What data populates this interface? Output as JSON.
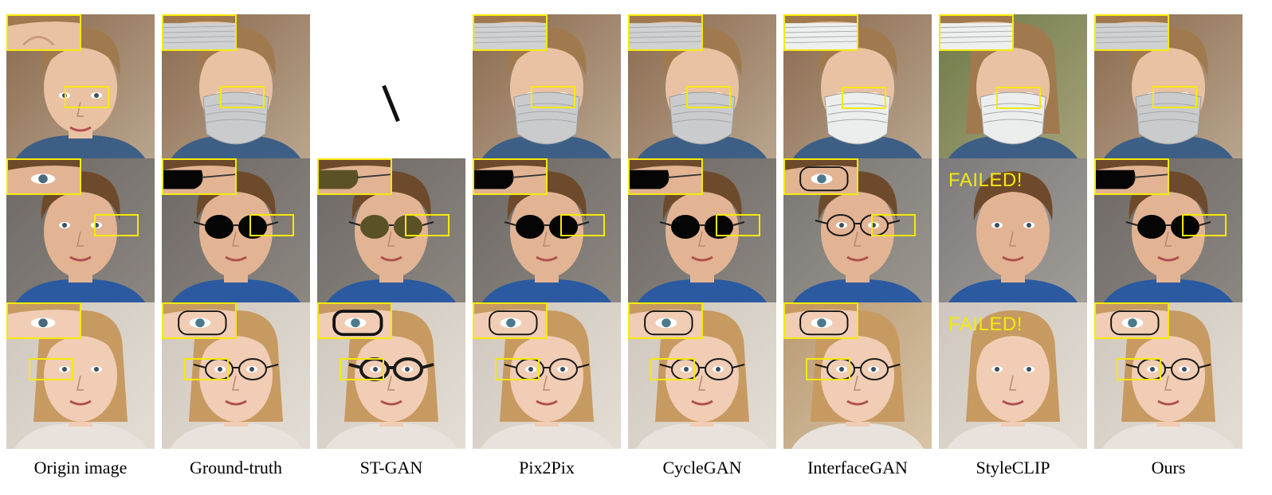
{
  "figure": {
    "columns": [
      {
        "label": "Origin image"
      },
      {
        "label": "Ground-truth"
      },
      {
        "label": "ST-GAN"
      },
      {
        "label": "Pix2Pix"
      },
      {
        "label": "CycleGAN"
      },
      {
        "label": "InterfaceGAN"
      },
      {
        "label": "StyleCLIP"
      },
      {
        "label": "Ours"
      }
    ],
    "rows": [
      {
        "name": "mask"
      },
      {
        "name": "sunglasses"
      },
      {
        "name": "eyeglasses"
      }
    ],
    "na_text": "\\",
    "failed_text": "FAILED!",
    "highlight_color": "#f5e90a"
  }
}
